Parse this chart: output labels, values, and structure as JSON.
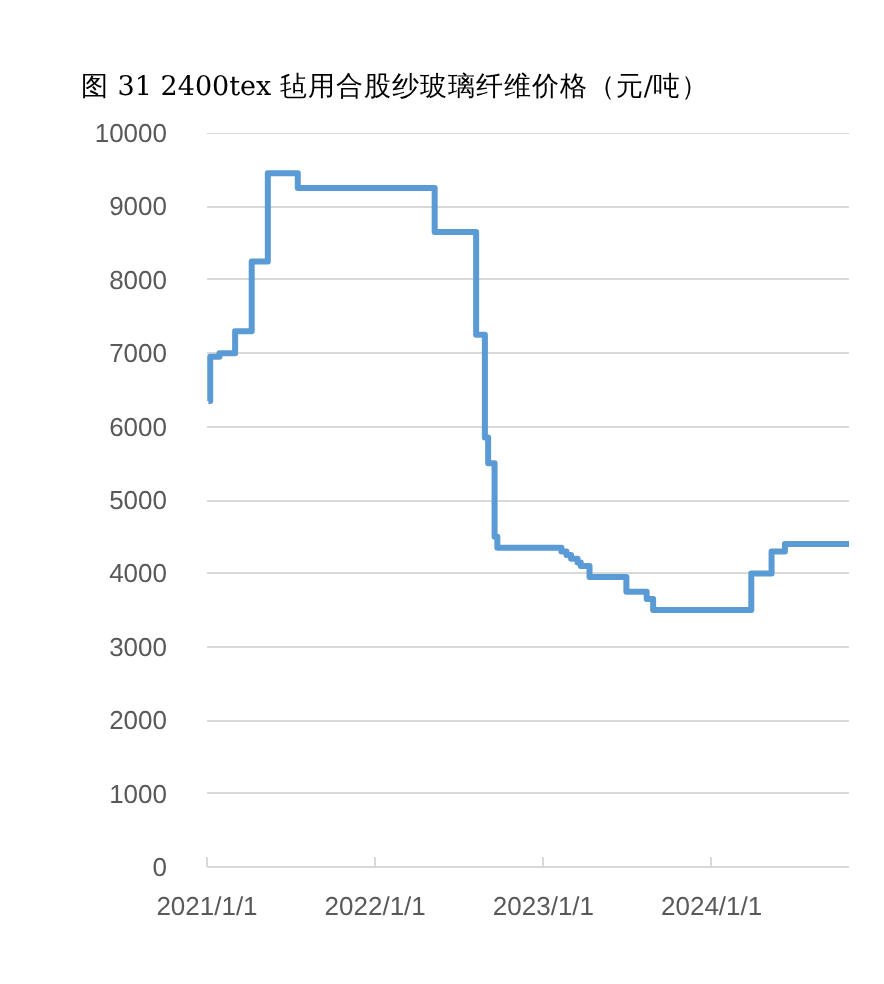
{
  "chart_data": {
    "type": "step",
    "title": "图 31 2400tex 毡用合股纱玻璃纤维价格（元/吨）",
    "x": [
      "2021-01-04",
      "2021-01-08",
      "2021-01-28",
      "2021-03-03",
      "2021-04-08",
      "2021-05-13",
      "2021-07-17",
      "2022-05-10",
      "2022-08-08",
      "2022-08-27",
      "2022-09-03",
      "2022-09-17",
      "2022-09-23",
      "2023-02-09",
      "2023-02-20",
      "2023-03-02",
      "2023-03-16",
      "2023-03-23",
      "2023-04-11",
      "2023-06-30",
      "2023-08-13",
      "2023-08-27",
      "2024-03-27",
      "2024-05-10",
      "2024-06-08",
      "2024-10-25"
    ],
    "series": [
      {
        "color": "#5b9bd5",
        "values": [
          6350,
          6950,
          7000,
          7300,
          8250,
          9450,
          9250,
          8650,
          7250,
          5850,
          5500,
          4500,
          4350,
          4300,
          4250,
          4200,
          4150,
          4100,
          3950,
          3750,
          3650,
          3500,
          4000,
          4300,
          4400,
          4400
        ]
      }
    ],
    "xlim": [
      "2021-01-01",
      "2024-10-25"
    ],
    "xticks": [
      {
        "value": "2021-01-01",
        "label": "2021/1/1"
      },
      {
        "value": "2022-01-01",
        "label": "2022/1/1"
      },
      {
        "value": "2023-01-01",
        "label": "2023/1/1"
      },
      {
        "value": "2024-01-01",
        "label": "2024/1/1"
      }
    ],
    "ylim": [
      0,
      10000
    ],
    "yticks": [
      0,
      1000,
      2000,
      3000,
      4000,
      5000,
      6000,
      7000,
      8000,
      9000,
      10000
    ],
    "grid": "y"
  }
}
